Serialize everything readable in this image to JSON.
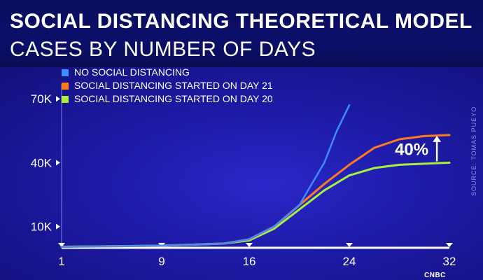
{
  "header": {
    "title": "SOCIAL DISTANCING THEORETICAL MODEL",
    "subtitle": "CASES BY NUMBER OF DAYS"
  },
  "source_text": "SOURCE: TOMAS PUEYO",
  "logo_text": "CNBC",
  "chart_data": {
    "type": "line",
    "title": "SOCIAL DISTANCING THEORETICAL MODEL",
    "subtitle": "CASES BY NUMBER OF DAYS",
    "xlabel": "",
    "ylabel": "",
    "xlim": [
      1,
      32
    ],
    "ylim": [
      0,
      75000
    ],
    "x_ticks": [
      1,
      9,
      16,
      24,
      32
    ],
    "y_ticks": [
      {
        "value": 10000,
        "label": "10K"
      },
      {
        "value": 40000,
        "label": "40K"
      },
      {
        "value": 70000,
        "label": "70K"
      }
    ],
    "grid": false,
    "legend_position": "top-left",
    "annotation": {
      "label": "40%",
      "x": 31,
      "from": 40000,
      "to": 53000
    },
    "series": [
      {
        "name": "NO SOCIAL DISTANCING",
        "color": "#3f8cff",
        "x": [
          1,
          9,
          14,
          16,
          18,
          20,
          21,
          22,
          23,
          24
        ],
        "y": [
          500,
          1000,
          2000,
          4000,
          10000,
          20000,
          30000,
          40000,
          55000,
          67000
        ]
      },
      {
        "name": "SOCIAL DISTANCING STARTED ON DAY 21",
        "color": "#ff7a1f",
        "x": [
          1,
          9,
          14,
          16,
          18,
          20,
          22,
          24,
          26,
          28,
          30,
          32
        ],
        "y": [
          500,
          1000,
          2000,
          4000,
          10000,
          20000,
          30000,
          39000,
          47000,
          51000,
          52500,
          53000
        ]
      },
      {
        "name": "SOCIAL DISTANCING STARTED ON DAY 20",
        "color": "#a9f03c",
        "x": [
          1,
          9,
          14,
          16,
          18,
          20,
          22,
          24,
          26,
          28,
          30,
          32
        ],
        "y": [
          500,
          1000,
          2000,
          3500,
          9000,
          18000,
          27000,
          34000,
          37500,
          39000,
          39500,
          40000
        ]
      }
    ]
  }
}
